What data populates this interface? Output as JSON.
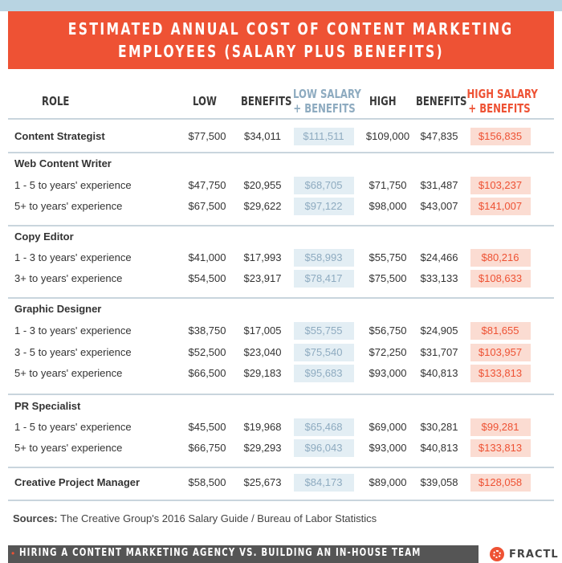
{
  "header": {
    "title_line1": "ESTIMATED ANNUAL COST OF CONTENT MARKETING",
    "title_line2": "EMPLOYEES (SALARY PLUS BENEFITS)"
  },
  "columns": {
    "role": "ROLE",
    "low": "LOW",
    "benefits1": "BENEFITS",
    "low_total_line1": "LOW SALARY",
    "low_total_line2": "+ BENEFITS",
    "high": "HIGH",
    "benefits2": "BENEFITS",
    "high_total_line1": "HIGH SALARY",
    "high_total_line2": "+ BENEFITS"
  },
  "rows": [
    {
      "label": "Content Strategist",
      "low": "$77,500",
      "benefits_low": "$34,011",
      "low_total": "$111,511",
      "high": "$109,000",
      "benefits_high": "$47,835",
      "high_total": "$156,835"
    },
    {
      "label": "Web Content Writer"
    },
    {
      "label": "1 - 5 to years' experience",
      "low": "$47,750",
      "benefits_low": "$20,955",
      "low_total": "$68,705",
      "high": "$71,750",
      "benefits_high": "$31,487",
      "high_total": "$103,237"
    },
    {
      "label": "5+ to years' experience",
      "low": "$67,500",
      "benefits_low": "$29,622",
      "low_total": "$97,122",
      "high": "$98,000",
      "benefits_high": "$43,007",
      "high_total": "$141,007"
    },
    {
      "label": "Copy Editor"
    },
    {
      "label": "1 - 3 to years' experience",
      "low": "$41,000",
      "benefits_low": "$17,993",
      "low_total": "$58,993",
      "high": "$55,750",
      "benefits_high": "$24,466",
      "high_total": "$80,216"
    },
    {
      "label": "3+ to years' experience",
      "low": "$54,500",
      "benefits_low": "$23,917",
      "low_total": "$78,417",
      "high": "$75,500",
      "benefits_high": "$33,133",
      "high_total": "$108,633"
    },
    {
      "label": "Graphic Designer"
    },
    {
      "label": "1 - 3 to years' experience",
      "low": "$38,750",
      "benefits_low": "$17,005",
      "low_total": "$55,755",
      "high": "$56,750",
      "benefits_high": "$24,905",
      "high_total": "$81,655"
    },
    {
      "label": "3 - 5 to years' experience",
      "low": "$52,500",
      "benefits_low": "$23,040",
      "low_total": "$75,540",
      "high": "$72,250",
      "benefits_high": "$31,707",
      "high_total": "$103,957"
    },
    {
      "label": "5+ to years' experience",
      "low": "$66,500",
      "benefits_low": "$29,183",
      "low_total": "$95,683",
      "high": "$93,000",
      "benefits_high": "$40,813",
      "high_total": "$133,813"
    },
    {
      "label": "PR Specialist"
    },
    {
      "label": "1 - 5 to years' experience",
      "low": "$45,500",
      "benefits_low": "$19,968",
      "low_total": "$65,468",
      "high": "$69,000",
      "benefits_high": "$30,281",
      "high_total": "$99,281"
    },
    {
      "label": "5+ to years' experience",
      "low": "$66,750",
      "benefits_low": "$29,293",
      "low_total": "$96,043",
      "high": "$93,000",
      "benefits_high": "$40,813",
      "high_total": "$133,813"
    },
    {
      "label": "Creative Project Manager",
      "low": "$58,500",
      "benefits_low": "$25,673",
      "low_total": "$84,173",
      "high": "$89,000",
      "benefits_high": "$39,058",
      "high_total": "$128,058"
    }
  ],
  "sources": {
    "label": "Sources:",
    "text": "The Creative Group's 2016 Salary Guide / Bureau of Labor Statistics"
  },
  "footer": {
    "bullet": "•",
    "text": "HIRING A CONTENT MARKETING AGENCY VS. BUILDING AN IN-HOUSE TEAM",
    "brand": "FRACTL"
  },
  "colors": {
    "accent": "#ee5234",
    "low_total_text": "#8eabc0",
    "low_total_bg": "#e3eef4",
    "high_total_bg": "#fbdcd2",
    "footer_bg": "#555555"
  }
}
